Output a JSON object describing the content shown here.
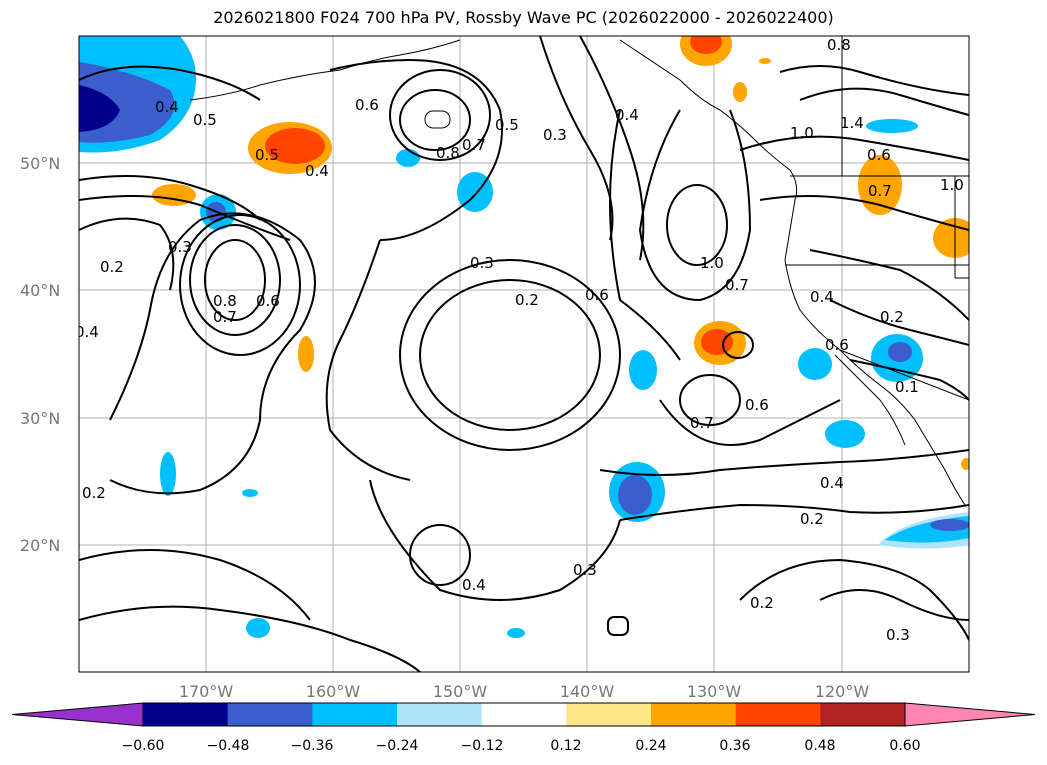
{
  "title": "2026021800 F024 700 hPa PV, Rossby Wave PC (2026022000 - 2026022400)",
  "map": {
    "lat_labels": [
      "50°N",
      "40°N",
      "30°N",
      "20°N"
    ],
    "lon_labels": [
      "170°W",
      "160°W",
      "150°W",
      "140°W",
      "130°W",
      "120°W"
    ],
    "lat_range": [
      10,
      60
    ],
    "lon_range": [
      -180,
      -110
    ],
    "grid": true
  },
  "colorbar": {
    "ticks": [
      "−0.60",
      "−0.48",
      "−0.36",
      "−0.24",
      "−0.12",
      "0.12",
      "0.24",
      "0.36",
      "0.48",
      "0.60"
    ],
    "colors": [
      "#9932cc",
      "#00008b",
      "#3a5fcd",
      "#00bfff",
      "#aee3fa",
      "#ffffff",
      "#fde68a",
      "#ffa500",
      "#ff4500",
      "#b22222",
      "#ff86b0"
    ]
  },
  "contour_labels": [
    {
      "text": "0.4"
    },
    {
      "text": "0.5"
    },
    {
      "text": "0.5"
    },
    {
      "text": "0.4"
    },
    {
      "text": "0.6"
    },
    {
      "text": "0.8"
    },
    {
      "text": "0.7"
    },
    {
      "text": "0.5"
    },
    {
      "text": "0.3"
    },
    {
      "text": "0.4"
    },
    {
      "text": "0.8"
    },
    {
      "text": "1.0"
    },
    {
      "text": "1.4"
    },
    {
      "text": "0.6"
    },
    {
      "text": "0.7"
    },
    {
      "text": "1.0"
    },
    {
      "text": "0.2"
    },
    {
      "text": "0.3"
    },
    {
      "text": "0.8"
    },
    {
      "text": "0.7"
    },
    {
      "text": "0.6"
    },
    {
      "text": "0.3"
    },
    {
      "text": "0.2"
    },
    {
      "text": "0.6"
    },
    {
      "text": "1.0"
    },
    {
      "text": "0.7"
    },
    {
      "text": "0.4"
    },
    {
      "text": "0.2"
    },
    {
      "text": "0.6"
    },
    {
      "text": "0.4"
    },
    {
      "text": "0.6"
    },
    {
      "text": "0.7"
    },
    {
      "text": "0.4"
    },
    {
      "text": "0.2"
    },
    {
      "text": "0.2"
    },
    {
      "text": "0.3"
    },
    {
      "text": "0.4"
    },
    {
      "text": "0.2"
    },
    {
      "text": "0.3"
    },
    {
      "text": "0.1"
    }
  ]
}
